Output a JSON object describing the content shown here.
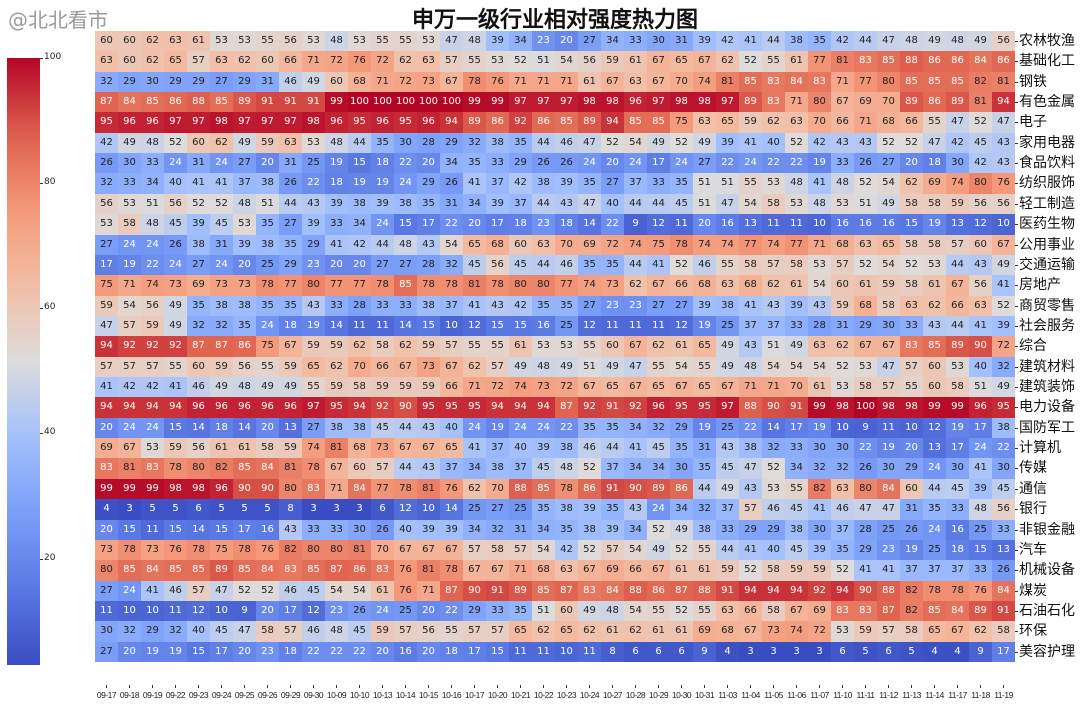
{
  "watermark": "@北北看市",
  "chart_data": {
    "type": "heatmap",
    "title": "申万一级行业相对强度热力图",
    "colormap": "coolwarm",
    "colorbar": {
      "range": [
        3,
        100
      ],
      "ticks": [
        100,
        80,
        60,
        40,
        20
      ]
    },
    "x": [
      "09-17",
      "09-18",
      "09-19",
      "09-22",
      "09-23",
      "09-24",
      "09-25",
      "09-26",
      "09-29",
      "09-30",
      "10-09",
      "10-10",
      "10-13",
      "10-14",
      "10-15",
      "10-16",
      "10-17",
      "10-20",
      "10-21",
      "10-22",
      "10-23",
      "10-24",
      "10-27",
      "10-28",
      "10-29",
      "10-30",
      "10-31",
      "11-03",
      "11-04",
      "11-05",
      "11-06",
      "11-07",
      "11-10",
      "11-11",
      "11-12",
      "11-13",
      "11-14",
      "11-17",
      "11-18",
      "11-19"
    ],
    "y": [
      "农林牧渔",
      "基础化工",
      "钢铁",
      "有色金属",
      "电子",
      "家用电器",
      "食品饮料",
      "纺织服饰",
      "轻工制造",
      "医药生物",
      "公用事业",
      "交通运输",
      "房地产",
      "商贸零售",
      "社会服务",
      "综合",
      "建筑材料",
      "建筑装饰",
      "电力设备",
      "国防军工",
      "计算机",
      "传媒",
      "通信",
      "银行",
      "非银金融",
      "汽车",
      "机械设备",
      "煤炭",
      "石油石化",
      "环保",
      "美容护理"
    ],
    "values": [
      [
        60,
        60,
        62,
        63,
        61,
        53,
        53,
        55,
        56,
        53,
        48,
        53,
        55,
        55,
        53,
        47,
        48,
        39,
        34,
        23,
        20,
        27,
        34,
        33,
        30,
        31,
        39,
        42,
        41,
        44,
        38,
        35,
        42,
        44,
        47,
        48,
        49,
        48,
        49,
        56
      ],
      [
        63,
        60,
        62,
        65,
        57,
        63,
        62,
        60,
        66,
        71,
        72,
        76,
        72,
        62,
        63,
        57,
        55,
        53,
        52,
        51,
        54,
        56,
        59,
        61,
        67,
        65,
        67,
        62,
        52,
        55,
        61,
        77,
        81,
        83,
        85,
        88,
        86,
        86,
        84,
        86
      ],
      [
        32,
        29,
        30,
        29,
        29,
        27,
        29,
        31,
        46,
        49,
        60,
        68,
        71,
        72,
        73,
        67,
        78,
        76,
        71,
        71,
        71,
        61,
        67,
        63,
        67,
        70,
        74,
        81,
        85,
        83,
        84,
        83,
        71,
        77,
        80,
        85,
        85,
        85,
        82,
        81
      ],
      [
        87,
        84,
        85,
        86,
        88,
        85,
        89,
        91,
        91,
        91,
        99,
        100,
        100,
        100,
        100,
        100,
        99,
        99,
        97,
        97,
        97,
        98,
        98,
        96,
        97,
        98,
        98,
        97,
        89,
        83,
        71,
        80,
        67,
        69,
        70,
        89,
        86,
        89,
        81,
        94
      ],
      [
        95,
        96,
        96,
        97,
        97,
        98,
        97,
        97,
        97,
        98,
        96,
        95,
        96,
        95,
        96,
        94,
        89,
        86,
        92,
        86,
        85,
        89,
        94,
        85,
        85,
        75,
        63,
        65,
        59,
        62,
        63,
        70,
        66,
        71,
        68,
        66,
        55,
        47,
        52,
        47
      ],
      [
        42,
        49,
        48,
        52,
        60,
        62,
        49,
        59,
        63,
        53,
        48,
        44,
        35,
        30,
        28,
        29,
        32,
        38,
        35,
        44,
        46,
        47,
        52,
        54,
        49,
        52,
        49,
        39,
        41,
        40,
        52,
        42,
        43,
        43,
        52,
        52,
        47,
        42,
        45,
        43
      ],
      [
        26,
        30,
        33,
        24,
        31,
        24,
        27,
        20,
        31,
        25,
        19,
        15,
        18,
        22,
        20,
        34,
        35,
        33,
        29,
        26,
        26,
        24,
        20,
        24,
        17,
        24,
        27,
        22,
        24,
        22,
        22,
        19,
        33,
        26,
        27,
        20,
        18,
        30,
        42,
        43
      ],
      [
        32,
        33,
        34,
        40,
        41,
        41,
        37,
        38,
        26,
        22,
        18,
        19,
        19,
        24,
        29,
        26,
        41,
        37,
        42,
        38,
        39,
        35,
        27,
        37,
        33,
        35,
        51,
        51,
        55,
        53,
        48,
        41,
        48,
        52,
        54,
        62,
        69,
        74,
        80,
        76
      ],
      [
        56,
        53,
        51,
        56,
        52,
        52,
        48,
        51,
        44,
        43,
        39,
        38,
        39,
        38,
        35,
        31,
        34,
        39,
        37,
        44,
        43,
        47,
        40,
        44,
        44,
        45,
        51,
        47,
        54,
        58,
        53,
        48,
        53,
        51,
        49,
        58,
        58,
        59,
        56,
        56
      ],
      [
        53,
        58,
        48,
        45,
        39,
        45,
        53,
        35,
        27,
        39,
        33,
        34,
        24,
        15,
        17,
        22,
        20,
        17,
        18,
        23,
        18,
        14,
        22,
        9,
        12,
        11,
        20,
        16,
        13,
        11,
        11,
        10,
        16,
        16,
        16,
        15,
        19,
        13,
        12,
        10
      ],
      [
        27,
        24,
        24,
        26,
        38,
        31,
        39,
        38,
        35,
        29,
        41,
        42,
        44,
        48,
        43,
        54,
        65,
        68,
        60,
        63,
        70,
        69,
        72,
        74,
        75,
        78,
        74,
        74,
        77,
        74,
        77,
        71,
        68,
        63,
        65,
        58,
        58,
        57,
        60,
        67
      ],
      [
        17,
        19,
        22,
        24,
        27,
        24,
        20,
        25,
        29,
        23,
        20,
        20,
        27,
        27,
        28,
        32,
        45,
        56,
        45,
        44,
        46,
        35,
        35,
        44,
        41,
        52,
        46,
        55,
        58,
        57,
        58,
        53,
        57,
        52,
        54,
        52,
        53,
        44,
        43,
        49
      ],
      [
        75,
        71,
        74,
        73,
        69,
        73,
        73,
        78,
        77,
        80,
        77,
        77,
        78,
        85,
        78,
        78,
        81,
        78,
        80,
        80,
        77,
        74,
        73,
        62,
        67,
        66,
        68,
        63,
        68,
        62,
        61,
        54,
        60,
        61,
        59,
        58,
        61,
        67,
        56,
        41
      ],
      [
        59,
        54,
        56,
        49,
        35,
        38,
        38,
        35,
        35,
        43,
        33,
        28,
        33,
        33,
        38,
        37,
        41,
        43,
        42,
        35,
        35,
        27,
        23,
        23,
        27,
        27,
        39,
        38,
        41,
        43,
        39,
        43,
        59,
        68,
        58,
        63,
        62,
        66,
        63,
        52
      ],
      [
        47,
        57,
        59,
        49,
        32,
        32,
        35,
        24,
        18,
        19,
        14,
        11,
        11,
        14,
        15,
        10,
        12,
        15,
        15,
        16,
        25,
        12,
        11,
        11,
        11,
        12,
        19,
        25,
        37,
        37,
        33,
        28,
        31,
        29,
        30,
        33,
        43,
        44,
        41,
        39
      ],
      [
        94,
        92,
        92,
        92,
        87,
        87,
        86,
        75,
        67,
        59,
        59,
        62,
        58,
        62,
        59,
        57,
        55,
        55,
        61,
        53,
        53,
        55,
        60,
        67,
        62,
        61,
        65,
        49,
        43,
        51,
        49,
        63,
        62,
        67,
        67,
        83,
        85,
        89,
        90,
        72
      ],
      [
        57,
        57,
        57,
        55,
        60,
        59,
        56,
        55,
        59,
        65,
        62,
        70,
        66,
        67,
        73,
        67,
        62,
        57,
        49,
        48,
        49,
        51,
        49,
        47,
        55,
        54,
        55,
        49,
        48,
        54,
        54,
        54,
        52,
        53,
        47,
        57,
        60,
        53,
        40,
        32
      ],
      [
        41,
        42,
        42,
        41,
        46,
        49,
        48,
        49,
        49,
        55,
        59,
        58,
        59,
        59,
        59,
        66,
        71,
        72,
        74,
        73,
        72,
        67,
        65,
        67,
        65,
        67,
        65,
        67,
        71,
        71,
        70,
        61,
        53,
        58,
        57,
        55,
        60,
        58,
        51,
        49
      ],
      [
        94,
        94,
        94,
        94,
        96,
        96,
        96,
        96,
        96,
        97,
        95,
        94,
        92,
        90,
        95,
        95,
        95,
        94,
        94,
        94,
        87,
        92,
        91,
        92,
        96,
        95,
        95,
        97,
        88,
        90,
        91,
        99,
        98,
        100,
        98,
        98,
        99,
        99,
        96,
        95
      ],
      [
        20,
        24,
        24,
        15,
        14,
        18,
        14,
        20,
        13,
        27,
        38,
        38,
        45,
        44,
        43,
        40,
        24,
        19,
        24,
        24,
        22,
        35,
        35,
        34,
        32,
        29,
        19,
        25,
        22,
        14,
        17,
        19,
        10,
        9,
        11,
        10,
        12,
        19,
        17,
        38
      ],
      [
        69,
        67,
        53,
        59,
        56,
        61,
        61,
        58,
        59,
        74,
        81,
        68,
        73,
        67,
        67,
        65,
        41,
        37,
        40,
        39,
        38,
        46,
        44,
        41,
        45,
        35,
        31,
        43,
        38,
        32,
        33,
        30,
        30,
        22,
        19,
        20,
        13,
        17,
        24,
        22
      ],
      [
        83,
        81,
        83,
        78,
        80,
        82,
        85,
        84,
        81,
        78,
        67,
        60,
        57,
        44,
        43,
        37,
        34,
        38,
        37,
        45,
        48,
        52,
        37,
        34,
        34,
        30,
        35,
        45,
        47,
        52,
        34,
        32,
        32,
        26,
        30,
        29,
        24,
        30,
        41,
        30
      ],
      [
        99,
        99,
        99,
        98,
        98,
        96,
        90,
        90,
        80,
        83,
        71,
        84,
        77,
        78,
        81,
        76,
        62,
        70,
        88,
        85,
        78,
        86,
        91,
        90,
        89,
        86,
        44,
        49,
        43,
        53,
        55,
        82,
        63,
        80,
        84,
        60,
        44,
        45,
        39,
        45
      ],
      [
        4,
        3,
        5,
        5,
        6,
        5,
        5,
        5,
        8,
        3,
        3,
        3,
        6,
        12,
        10,
        14,
        25,
        27,
        25,
        35,
        38,
        39,
        35,
        43,
        24,
        34,
        32,
        37,
        57,
        46,
        45,
        41,
        46,
        47,
        47,
        31,
        35,
        33,
        48,
        56
      ],
      [
        20,
        15,
        11,
        15,
        14,
        15,
        17,
        16,
        43,
        33,
        33,
        30,
        26,
        40,
        39,
        39,
        34,
        32,
        31,
        34,
        35,
        38,
        39,
        34,
        52,
        49,
        38,
        33,
        29,
        29,
        38,
        30,
        37,
        28,
        25,
        26,
        24,
        16,
        25,
        33
      ],
      [
        73,
        78,
        73,
        76,
        78,
        75,
        78,
        76,
        82,
        80,
        80,
        81,
        70,
        67,
        67,
        67,
        57,
        58,
        57,
        54,
        42,
        52,
        57,
        54,
        49,
        52,
        55,
        44,
        41,
        40,
        45,
        39,
        35,
        29,
        23,
        19,
        25,
        18,
        15,
        13
      ],
      [
        80,
        85,
        84,
        85,
        85,
        89,
        85,
        84,
        83,
        85,
        87,
        86,
        83,
        76,
        81,
        78,
        67,
        67,
        71,
        68,
        63,
        67,
        69,
        66,
        67,
        61,
        61,
        59,
        52,
        58,
        59,
        59,
        52,
        41,
        41,
        37,
        37,
        37,
        33,
        26
      ],
      [
        27,
        24,
        41,
        46,
        57,
        47,
        52,
        52,
        46,
        45,
        54,
        54,
        61,
        76,
        71,
        87,
        90,
        91,
        89,
        85,
        87,
        83,
        84,
        88,
        86,
        87,
        88,
        91,
        94,
        94,
        94,
        92,
        94,
        90,
        88,
        82,
        78,
        78,
        76,
        84
      ],
      [
        11,
        10,
        10,
        11,
        12,
        10,
        9,
        20,
        17,
        12,
        23,
        26,
        24,
        25,
        20,
        22,
        29,
        33,
        35,
        51,
        60,
        49,
        48,
        54,
        55,
        52,
        55,
        63,
        66,
        58,
        67,
        69,
        83,
        83,
        87,
        82,
        85,
        84,
        89,
        91
      ],
      [
        30,
        32,
        29,
        32,
        40,
        45,
        47,
        58,
        57,
        46,
        48,
        45,
        59,
        57,
        56,
        55,
        57,
        57,
        65,
        62,
        65,
        62,
        61,
        62,
        61,
        61,
        69,
        68,
        67,
        73,
        74,
        72,
        53,
        59,
        57,
        58,
        65,
        67,
        62,
        58
      ],
      [
        27,
        20,
        19,
        19,
        15,
        17,
        20,
        23,
        18,
        22,
        22,
        22,
        20,
        16,
        20,
        18,
        17,
        15,
        11,
        11,
        10,
        11,
        8,
        6,
        6,
        6,
        9,
        4,
        3,
        3,
        3,
        3,
        6,
        5,
        6,
        5,
        4,
        4,
        9,
        17
      ]
    ]
  }
}
